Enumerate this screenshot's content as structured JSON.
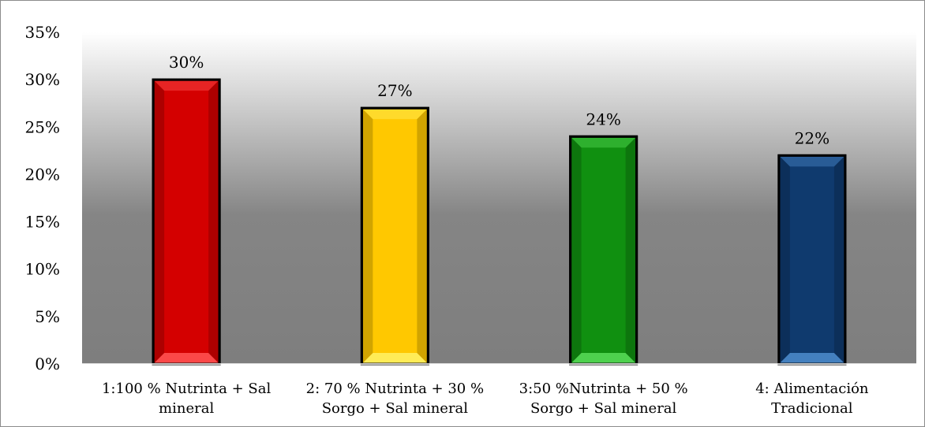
{
  "chart_data": {
    "type": "bar",
    "categories": [
      [
        "1:100 % Nutrinta + Sal",
        "mineral"
      ],
      [
        "2: 70 % Nutrinta + 30 %",
        "Sorgo + Sal mineral"
      ],
      [
        "3:50 %Nutrinta + 50 %",
        "Sorgo + Sal mineral"
      ],
      [
        "4: Alimentación",
        "Tradicional"
      ]
    ],
    "values": [
      30,
      27,
      24,
      22
    ],
    "data_labels": [
      "30%",
      "27%",
      "24%",
      "22%"
    ],
    "bar_colors": [
      "#d40000",
      "#ffc800",
      "#109010",
      "#0f3a6e"
    ],
    "bar_highlights": [
      "#ff5050",
      "#ffef60",
      "#55d855",
      "#4a88c8"
    ],
    "y_ticks": [
      "0%",
      "5%",
      "10%",
      "15%",
      "20%",
      "25%",
      "30%",
      "35%"
    ],
    "ylim": [
      0,
      35
    ],
    "grid": false,
    "legend": "none",
    "title": "",
    "xlabel": "",
    "ylabel": ""
  }
}
